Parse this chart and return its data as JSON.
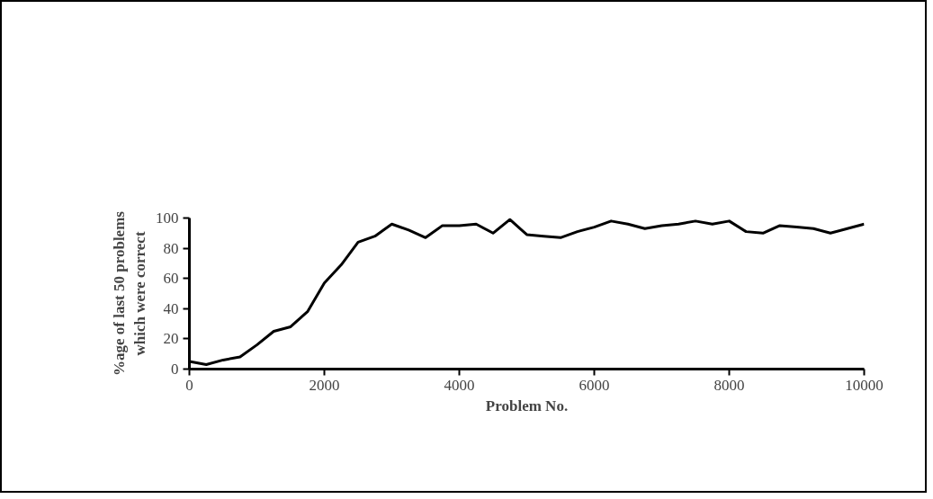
{
  "chart_data": {
    "type": "line",
    "xlabel": "Problem No.",
    "ylabel": "%age of last 50 problems\nwhich were correct",
    "x": [
      0,
      250,
      500,
      750,
      1000,
      1250,
      1500,
      1750,
      2000,
      2250,
      2500,
      2750,
      3000,
      3250,
      3500,
      3750,
      4000,
      4250,
      4500,
      4750,
      5000,
      5250,
      5500,
      5750,
      6000,
      6250,
      6500,
      6750,
      7000,
      7250,
      7500,
      7750,
      8000,
      8250,
      8500,
      8750,
      9000,
      9250,
      9500,
      9750,
      10000
    ],
    "series": [
      {
        "color": "#000000",
        "values": [
          5,
          3,
          6,
          8,
          16,
          25,
          28,
          38,
          57,
          69,
          84,
          88,
          96,
          92,
          87,
          95,
          95,
          96,
          90,
          99,
          89,
          88,
          87,
          91,
          94,
          98,
          96,
          93,
          95,
          96,
          98,
          96,
          98,
          91,
          90,
          95,
          94,
          93,
          90,
          93,
          96
        ]
      }
    ],
    "xlim": [
      0,
      10000
    ],
    "ylim": [
      0,
      100
    ],
    "xticks": [
      0,
      2000,
      4000,
      6000,
      8000,
      10000
    ],
    "yticks": [
      0,
      20,
      40,
      60,
      80,
      100
    ],
    "grid": false,
    "marker": "none",
    "line_style": "solid"
  }
}
